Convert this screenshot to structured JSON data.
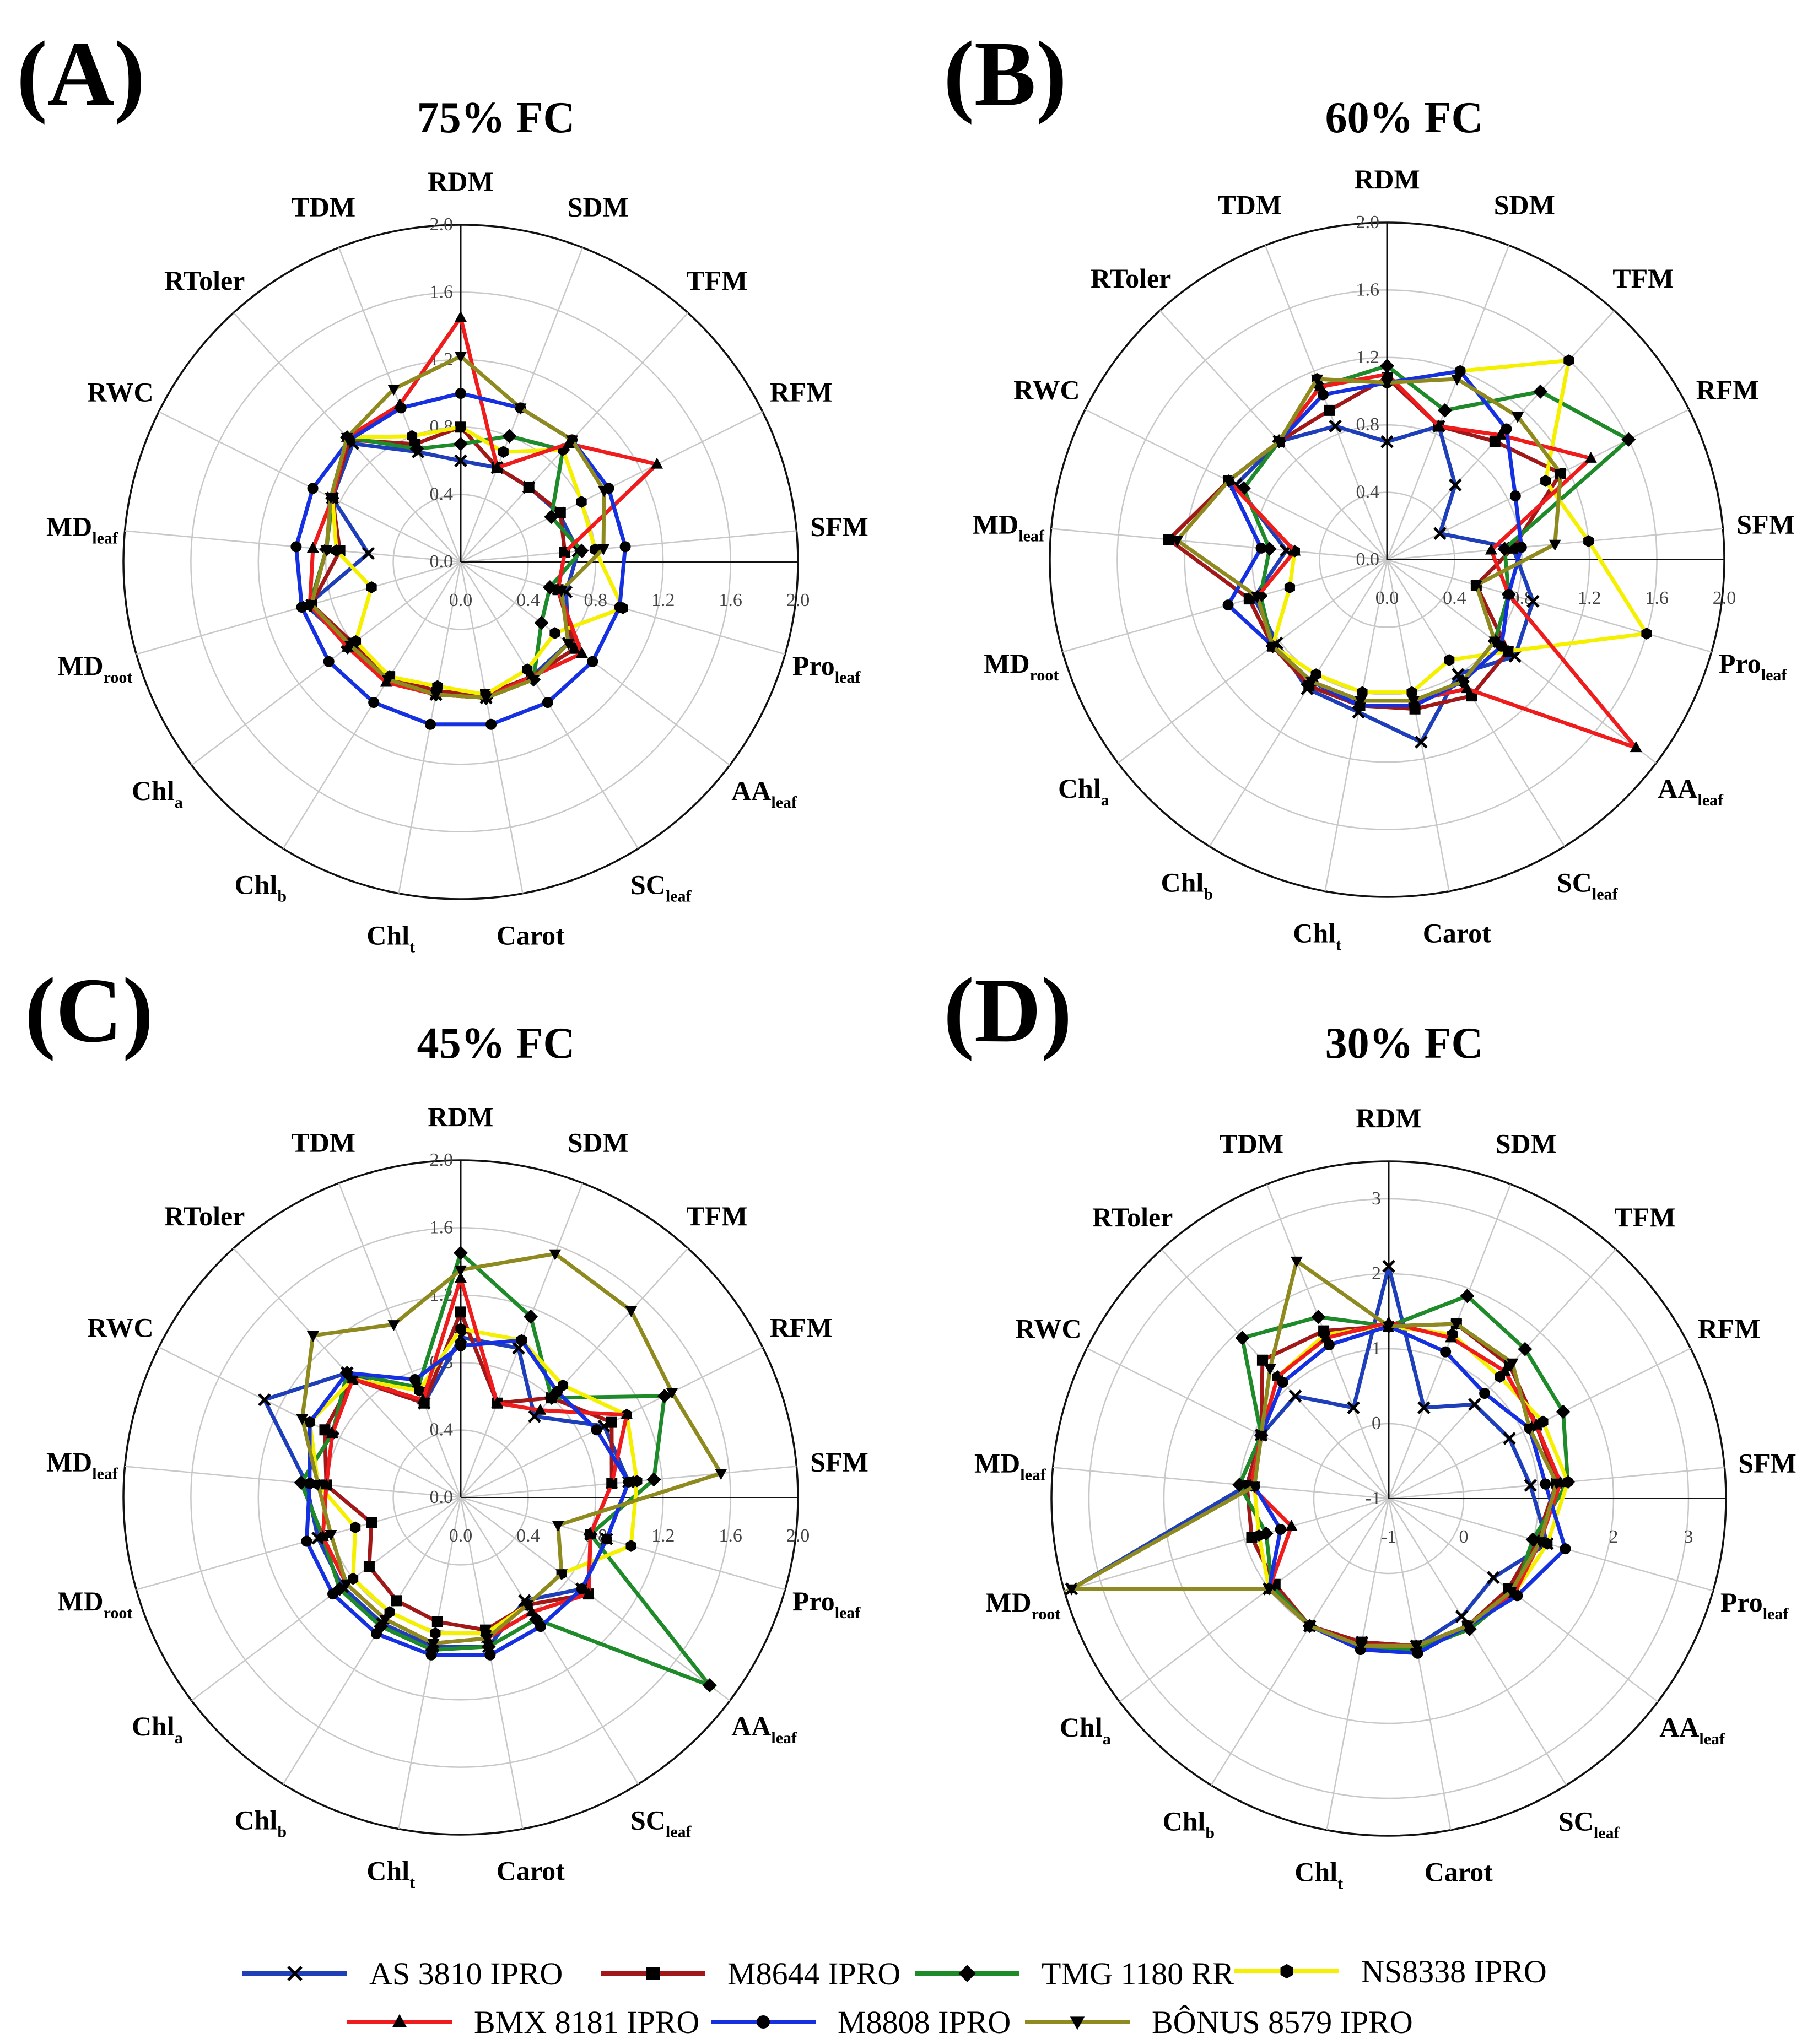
{
  "figure": {
    "legend": [
      {
        "name": "AS 3810 IPRO",
        "color": "#1f3fb8",
        "marker": "x"
      },
      {
        "name": "M8644 IPRO",
        "color": "#a01818",
        "marker": "square"
      },
      {
        "name": "TMG 1180 RR",
        "color": "#1f8a2a",
        "marker": "diamond"
      },
      {
        "name": "NS8338 IPRO",
        "color": "#f5f000",
        "marker": "hexagon"
      },
      {
        "name": "BMX 8181 IPRO",
        "color": "#ee1c1c",
        "marker": "triangle-up"
      },
      {
        "name": "M8808 IPRO",
        "color": "#1530e0",
        "marker": "circle"
      },
      {
        "name": "BÔNUS 8579 IPRO",
        "color": "#8f8a20",
        "marker": "triangle-down"
      }
    ]
  },
  "chart_data": [
    {
      "type": "radar",
      "panel": "(A)",
      "title": "75% FC",
      "axes": [
        {
          "main": "RDM",
          "sub": ""
        },
        {
          "main": "SDM",
          "sub": ""
        },
        {
          "main": "TFM",
          "sub": ""
        },
        {
          "main": "RFM",
          "sub": ""
        },
        {
          "main": "SFM",
          "sub": ""
        },
        {
          "main": "Pro",
          "sub": "leaf"
        },
        {
          "main": "AA",
          "sub": "leaf"
        },
        {
          "main": "SC",
          "sub": "leaf"
        },
        {
          "main": "Carot",
          "sub": ""
        },
        {
          "main": "Chl",
          "sub": "t"
        },
        {
          "main": "Chl",
          "sub": "b"
        },
        {
          "main": "Chl",
          "sub": "a"
        },
        {
          "main": "MD",
          "sub": "root"
        },
        {
          "main": "MD",
          "sub": "leaf"
        },
        {
          "main": "RWC",
          "sub": ""
        },
        {
          "main": "RToler",
          "sub": ""
        },
        {
          "main": "TDM",
          "sub": ""
        }
      ],
      "rlim": [
        0,
        2.0
      ],
      "ticks": [
        "0.0",
        "0.4",
        "0.8",
        "1.2",
        "1.6",
        "2.0"
      ],
      "series": [
        {
          "name": "AS 3810 IPRO",
          "values": [
            0.6,
            0.6,
            0.6,
            0.65,
            0.7,
            0.65,
            0.8,
            0.8,
            0.82,
            0.8,
            0.82,
            0.82,
            0.95,
            0.55,
            0.85,
            0.95,
            0.7
          ]
        },
        {
          "name": "M8644 IPRO",
          "values": [
            0.8,
            0.6,
            0.6,
            0.66,
            0.62,
            0.6,
            0.85,
            0.8,
            0.8,
            0.78,
            0.8,
            0.8,
            0.92,
            0.72,
            0.85,
            0.98,
            0.75
          ]
        },
        {
          "name": "TMG 1180 RR",
          "values": [
            0.7,
            0.8,
            0.9,
            0.6,
            0.72,
            0.55,
            0.6,
            0.82,
            0.82,
            0.8,
            0.82,
            0.84,
            0.93,
            0.8,
            0.85,
            1.0,
            0.72
          ]
        },
        {
          "name": "NS8338 IPRO",
          "values": [
            0.8,
            0.7,
            0.9,
            0.8,
            0.8,
            1.0,
            0.7,
            0.75,
            0.8,
            0.75,
            0.8,
            0.78,
            0.55,
            0.74,
            0.85,
            1.0,
            0.8
          ]
        },
        {
          "name": "BMX 8181 IPRO",
          "values": [
            1.45,
            0.6,
            0.95,
            1.3,
            0.62,
            0.6,
            0.9,
            0.8,
            0.82,
            0.8,
            0.84,
            0.84,
            0.93,
            0.88,
            0.85,
            1.0,
            1.0
          ]
        },
        {
          "name": "M8808 IPRO",
          "values": [
            1.0,
            0.98,
            0.98,
            0.98,
            0.98,
            0.98,
            0.98,
            0.98,
            0.98,
            0.98,
            0.98,
            0.98,
            0.98,
            0.98,
            0.98,
            0.98,
            0.98
          ]
        },
        {
          "name": "BÔNUS 8579 IPRO",
          "values": [
            1.22,
            0.98,
            0.98,
            0.95,
            0.85,
            0.62,
            0.8,
            0.82,
            0.82,
            0.8,
            0.82,
            0.82,
            0.92,
            0.8,
            0.86,
            1.0,
            1.1
          ]
        }
      ]
    },
    {
      "type": "radar",
      "panel": "(B)",
      "title": "60% FC",
      "axes": [
        {
          "main": "RDM",
          "sub": ""
        },
        {
          "main": "SDM",
          "sub": ""
        },
        {
          "main": "TFM",
          "sub": ""
        },
        {
          "main": "RFM",
          "sub": ""
        },
        {
          "main": "SFM",
          "sub": ""
        },
        {
          "main": "Pro",
          "sub": "leaf"
        },
        {
          "main": "AA",
          "sub": "leaf"
        },
        {
          "main": "SC",
          "sub": "leaf"
        },
        {
          "main": "Carot",
          "sub": ""
        },
        {
          "main": "Chl",
          "sub": "t"
        },
        {
          "main": "Chl",
          "sub": "b"
        },
        {
          "main": "Chl",
          "sub": "a"
        },
        {
          "main": "MD",
          "sub": "root"
        },
        {
          "main": "MD",
          "sub": "leaf"
        },
        {
          "main": "RWC",
          "sub": ""
        },
        {
          "main": "RToler",
          "sub": ""
        },
        {
          "main": "TDM",
          "sub": ""
        }
      ],
      "rlim": [
        0,
        2.0
      ],
      "ticks": [
        "0.0",
        "0.4",
        "0.8",
        "1.2",
        "1.6",
        "2.0"
      ],
      "series": [
        {
          "name": "AS 3810 IPRO",
          "values": [
            0.7,
            0.85,
            0.6,
            0.35,
            0.75,
            0.9,
            0.95,
            0.8,
            1.1,
            0.92,
            0.9,
            0.82,
            0.82,
            0.6,
            1.0,
            0.95,
            0.85
          ]
        },
        {
          "name": "M8644 IPRO",
          "values": [
            1.08,
            0.85,
            0.95,
            1.15,
            0.75,
            0.55,
            0.9,
            0.95,
            0.9,
            0.88,
            0.88,
            0.85,
            0.85,
            1.3,
            1.05,
            0.95,
            0.95
          ]
        },
        {
          "name": "TMG 1180 RR",
          "values": [
            1.15,
            0.95,
            1.35,
            1.6,
            0.7,
            0.75,
            0.8,
            0.85,
            0.85,
            0.85,
            0.85,
            0.85,
            0.78,
            0.7,
            0.95,
            0.95,
            1.1
          ]
        },
        {
          "name": "NS8338 IPRO",
          "values": [
            1.05,
            1.2,
            1.6,
            1.05,
            1.2,
            1.6,
            0.9,
            0.7,
            0.8,
            0.8,
            0.8,
            0.85,
            0.6,
            0.55,
            1.05,
            0.95,
            1.15
          ]
        },
        {
          "name": "BMX 8181 IPRO",
          "values": [
            1.1,
            0.85,
            1.0,
            1.35,
            0.62,
            0.75,
            1.85,
            0.9,
            0.85,
            0.85,
            0.85,
            0.85,
            0.8,
            0.55,
            1.05,
            0.95,
            1.1
          ]
        },
        {
          "name": "M8808 IPRO",
          "values": [
            1.05,
            1.2,
            1.05,
            0.85,
            0.8,
            0.75,
            0.85,
            0.85,
            0.88,
            0.88,
            0.85,
            0.85,
            0.98,
            0.75,
            1.05,
            0.95,
            1.05
          ]
        },
        {
          "name": "BÔNUS 8579 IPRO",
          "values": [
            1.05,
            1.15,
            1.15,
            1.15,
            1.0,
            0.55,
            0.8,
            0.85,
            0.85,
            0.85,
            0.85,
            0.85,
            0.8,
            1.25,
            1.05,
            0.95,
            1.15
          ]
        }
      ]
    },
    {
      "type": "radar",
      "panel": "(C)",
      "title": "45% FC",
      "axes": [
        {
          "main": "RDM",
          "sub": ""
        },
        {
          "main": "SDM",
          "sub": ""
        },
        {
          "main": "TFM",
          "sub": ""
        },
        {
          "main": "RFM",
          "sub": ""
        },
        {
          "main": "SFM",
          "sub": ""
        },
        {
          "main": "Pro",
          "sub": "leaf"
        },
        {
          "main": "AA",
          "sub": "leaf"
        },
        {
          "main": "SC",
          "sub": "leaf"
        },
        {
          "main": "Carot",
          "sub": ""
        },
        {
          "main": "Chl",
          "sub": "t"
        },
        {
          "main": "Chl",
          "sub": "b"
        },
        {
          "main": "Chl",
          "sub": "a"
        },
        {
          "main": "MD",
          "sub": "root"
        },
        {
          "main": "MD",
          "sub": "leaf"
        },
        {
          "main": "RWC",
          "sub": ""
        },
        {
          "main": "RToler",
          "sub": ""
        },
        {
          "main": "TDM",
          "sub": ""
        }
      ],
      "rlim": [
        0,
        2.0
      ],
      "ticks": [
        "0.0",
        "0.4",
        "0.8",
        "1.2",
        "1.6",
        "2.0"
      ],
      "series": [
        {
          "name": "AS 3810 IPRO",
          "values": [
            0.95,
            0.95,
            0.65,
            0.95,
            1.0,
            0.9,
            0.9,
            0.72,
            0.9,
            0.9,
            0.88,
            0.88,
            0.88,
            0.92,
            1.3,
            1.0,
            0.6
          ]
        },
        {
          "name": "M8644 IPRO",
          "values": [
            1.1,
            0.6,
            0.8,
            1.0,
            0.9,
            0.8,
            0.95,
            0.75,
            0.8,
            0.75,
            0.72,
            0.68,
            0.55,
            0.8,
            0.9,
            0.95,
            0.6
          ]
        },
        {
          "name": "TMG 1180 RR",
          "values": [
            1.45,
            1.15,
            0.8,
            1.35,
            1.15,
            0.8,
            1.85,
            0.85,
            0.9,
            0.92,
            0.9,
            0.9,
            0.85,
            0.95,
            0.85,
            1.0,
            0.7
          ]
        },
        {
          "name": "NS8338 IPRO",
          "values": [
            1.0,
            1.0,
            0.9,
            1.1,
            1.05,
            1.05,
            0.75,
            0.75,
            0.82,
            0.82,
            0.8,
            0.8,
            0.65,
            0.85,
            1.0,
            0.95,
            0.68
          ]
        },
        {
          "name": "BMX 8181 IPRO",
          "values": [
            1.3,
            0.6,
            0.7,
            1.1,
            0.9,
            0.8,
            0.95,
            0.8,
            0.85,
            0.88,
            0.85,
            0.85,
            0.85,
            0.8,
            0.85,
            0.95,
            0.62
          ]
        },
        {
          "name": "M8808 IPRO",
          "values": [
            0.9,
            1.0,
            0.85,
            0.9,
            1.0,
            0.9,
            0.9,
            0.9,
            0.95,
            0.95,
            0.95,
            0.95,
            0.95,
            0.9,
            1.0,
            1.0,
            0.75
          ]
        },
        {
          "name": "BÔNUS 8579 IPRO",
          "values": [
            1.35,
            1.55,
            1.5,
            1.4,
            1.55,
            0.6,
            0.75,
            0.75,
            0.85,
            0.88,
            0.85,
            0.85,
            0.8,
            0.85,
            1.05,
            1.3,
            1.1
          ]
        }
      ]
    },
    {
      "type": "radar",
      "panel": "(D)",
      "title": "30% FC",
      "axes": [
        {
          "main": "RDM",
          "sub": ""
        },
        {
          "main": "SDM",
          "sub": ""
        },
        {
          "main": "TFM",
          "sub": ""
        },
        {
          "main": "RFM",
          "sub": ""
        },
        {
          "main": "SFM",
          "sub": ""
        },
        {
          "main": "Pro",
          "sub": "leaf"
        },
        {
          "main": "AA",
          "sub": "leaf"
        },
        {
          "main": "SC",
          "sub": "leaf"
        },
        {
          "main": "Carot",
          "sub": ""
        },
        {
          "main": "Chl",
          "sub": "t"
        },
        {
          "main": "Chl",
          "sub": "b"
        },
        {
          "main": "Chl",
          "sub": "a"
        },
        {
          "main": "MD",
          "sub": "root"
        },
        {
          "main": "MD",
          "sub": "leaf"
        },
        {
          "main": "RWC",
          "sub": ""
        },
        {
          "main": "RToler",
          "sub": ""
        },
        {
          "main": "TDM",
          "sub": ""
        }
      ],
      "rlim": [
        -1,
        3.5
      ],
      "ticks": [
        "-1",
        "0",
        "1",
        "2",
        "3"
      ],
      "series": [
        {
          "name": "AS 3810 IPRO",
          "values": [
            2.1,
            0.3,
            0.7,
            0.8,
            0.9,
            1.2,
            0.75,
            0.85,
            1.0,
            0.95,
            1.0,
            1.0,
            3.4,
            0.9,
            0.9,
            0.85,
            0.3
          ]
        },
        {
          "name": "M8644 IPRO",
          "values": [
            1.3,
            1.5,
            1.4,
            1.2,
            1.25,
            1.05,
            1.0,
            1.0,
            1.0,
            0.95,
            1.0,
            0.9,
            0.9,
            0.9,
            0.9,
            1.5,
            1.4
          ]
        },
        {
          "name": "TMG 1180 RR",
          "values": [
            1.3,
            1.9,
            1.7,
            1.6,
            1.4,
            1.0,
            1.1,
            1.05,
            1.05,
            1.0,
            1.0,
            0.95,
            0.7,
            1.0,
            0.9,
            1.9,
            1.6
          ]
        },
        {
          "name": "NS8338 IPRO",
          "values": [
            1.3,
            1.35,
            1.2,
            1.3,
            1.4,
            1.2,
            1.1,
            1.0,
            1.0,
            1.0,
            1.0,
            1.0,
            0.8,
            0.8,
            0.9,
            1.2,
            1.35
          ]
        },
        {
          "name": "BMX 8181 IPRO",
          "values": [
            1.35,
            1.3,
            1.3,
            1.2,
            1.3,
            1.1,
            1.1,
            1.0,
            1.0,
            1.0,
            1.0,
            1.0,
            0.35,
            0.85,
            0.9,
            1.2,
            1.3
          ]
        },
        {
          "name": "M8808 IPRO",
          "values": [
            1.3,
            1.1,
            0.9,
            1.1,
            1.1,
            1.45,
            1.15,
            1.0,
            1.1,
            1.05,
            1.0,
            1.0,
            0.5,
            0.8,
            0.9,
            1.1,
            1.2
          ]
        },
        {
          "name": "BÔNUS 8579 IPRO",
          "values": [
            1.3,
            1.5,
            1.45,
            1.1,
            1.25,
            1.1,
            1.05,
            1.0,
            1.0,
            1.0,
            1.0,
            1.0,
            3.4,
            0.8,
            0.9,
            1.35,
            2.4
          ]
        }
      ]
    }
  ]
}
